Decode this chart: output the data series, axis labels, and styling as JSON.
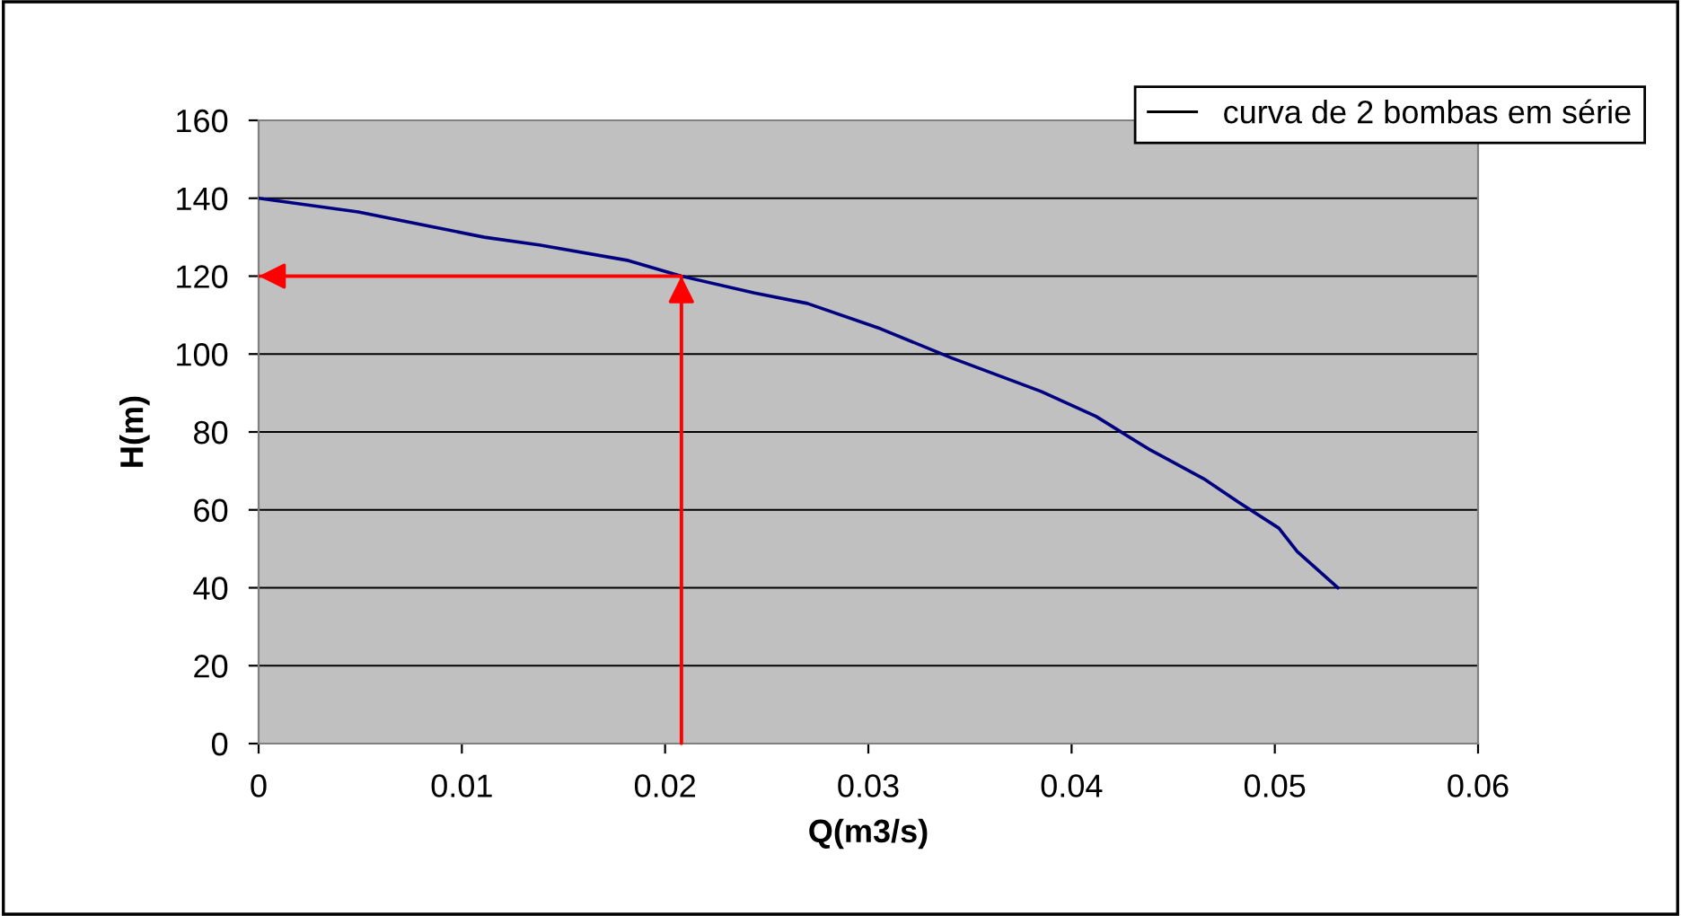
{
  "chart_data": {
    "type": "line",
    "xlabel": "Q(m3/s)",
    "ylabel": "H(m)",
    "xlim": [
      0,
      0.06
    ],
    "xticks": [
      0,
      0.01,
      0.02,
      0.03,
      0.04,
      0.05,
      0.06
    ],
    "ylim": [
      0,
      160
    ],
    "yticks": [
      0,
      20,
      40,
      60,
      80,
      100,
      120,
      140,
      160
    ],
    "grid": "y",
    "legend": "top right",
    "marker": "none",
    "line_style": "solid",
    "series": [
      {
        "name": "curva de 2 bombas em série",
        "color": "#000080",
        "x": [
          0,
          0.0049,
          0.0111,
          0.0138,
          0.0182,
          0.0208,
          0.0244,
          0.027,
          0.0306,
          0.0341,
          0.0385,
          0.0412,
          0.0438,
          0.0465,
          0.0482,
          0.0502,
          0.0511,
          0.0531
        ],
        "values": [
          140,
          136.5,
          130,
          128,
          124,
          120,
          115.7,
          113,
          106.5,
          99,
          90.4,
          84,
          75.6,
          68,
          62,
          55.3,
          49.3,
          40
        ]
      },
      {
        "color": "#ff0000",
        "x": [
          0.0208,
          0.0208,
          0
        ],
        "values": [
          0,
          120,
          120
        ]
      }
    ]
  }
}
